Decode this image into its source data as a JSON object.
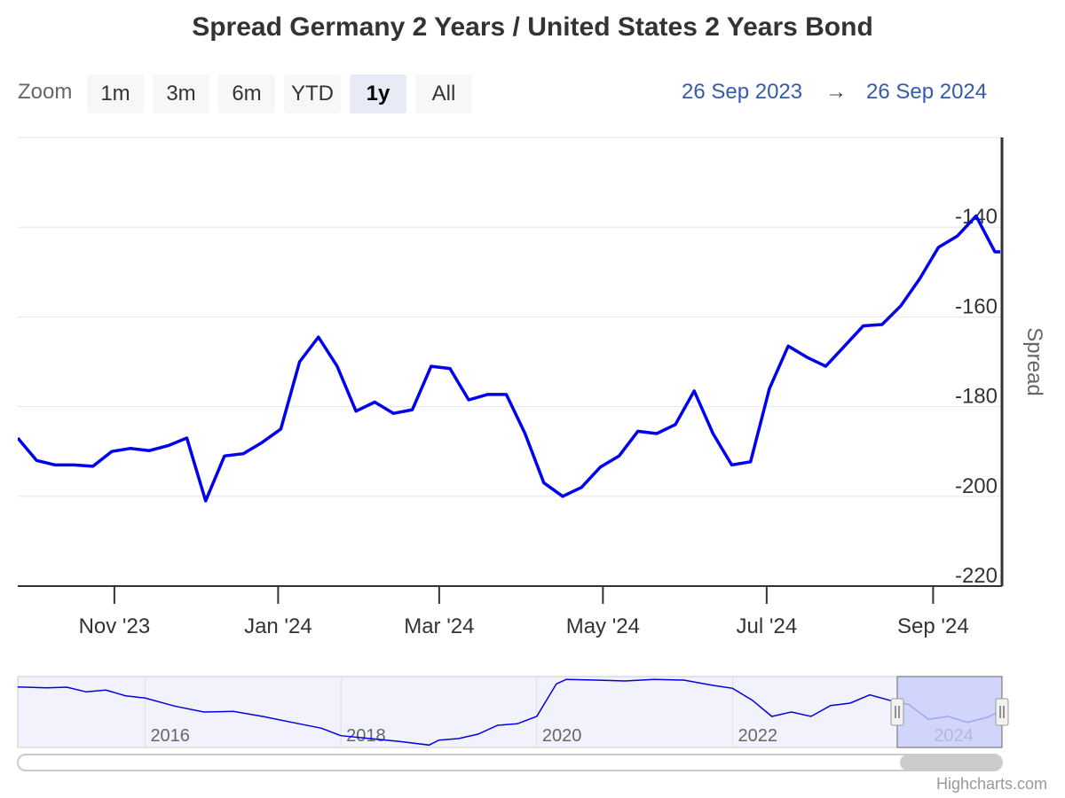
{
  "title": "Spread Germany 2 Years / United States 2 Years Bond",
  "zoom": {
    "label": "Zoom",
    "buttons": [
      "1m",
      "3m",
      "6m",
      "YTD",
      "1y",
      "All"
    ],
    "active": "1y"
  },
  "range": {
    "from": "26 Sep 2023",
    "arrow": "→",
    "to": "26 Sep 2024"
  },
  "credits": "Highcharts.com",
  "colors": {
    "series": "#0000ee",
    "navigator_series": "#0000dd",
    "range_text": "#335cad",
    "navigator_mask": "#c8cdfa"
  },
  "chart_data": {
    "type": "line",
    "title": "Spread Germany 2 Years / United States 2 Years Bond",
    "ylabel": "Spread",
    "ylim": [
      -220,
      -120
    ],
    "yticks": [
      -140,
      -160,
      -180,
      -200,
      -220
    ],
    "xrange": [
      "2023-09-26",
      "2024-09-26"
    ],
    "xticks": [
      {
        "date": "2023-11-01",
        "label": "Nov '23"
      },
      {
        "date": "2024-01-01",
        "label": "Jan '24"
      },
      {
        "date": "2024-03-01",
        "label": "Mar '24"
      },
      {
        "date": "2024-05-01",
        "label": "May '24"
      },
      {
        "date": "2024-07-01",
        "label": "Jul '24"
      },
      {
        "date": "2024-09-01",
        "label": "Sep '24"
      }
    ],
    "grid": true,
    "legend": "none",
    "series": [
      {
        "x": [
          "2023-09-26",
          "2023-10-03",
          "2023-10-10",
          "2023-10-17",
          "2023-10-24",
          "2023-10-31",
          "2023-11-07",
          "2023-11-14",
          "2023-11-21",
          "2023-11-28",
          "2023-12-05",
          "2023-12-12",
          "2023-12-19",
          "2023-12-26",
          "2024-01-02",
          "2024-01-09",
          "2024-01-16",
          "2024-01-23",
          "2024-01-30",
          "2024-02-06",
          "2024-02-13",
          "2024-02-20",
          "2024-02-27",
          "2024-03-05",
          "2024-03-12",
          "2024-03-19",
          "2024-03-26",
          "2024-04-02",
          "2024-04-09",
          "2024-04-16",
          "2024-04-23",
          "2024-04-30",
          "2024-05-07",
          "2024-05-14",
          "2024-05-21",
          "2024-05-28",
          "2024-06-04",
          "2024-06-11",
          "2024-06-18",
          "2024-06-25",
          "2024-07-02",
          "2024-07-09",
          "2024-07-16",
          "2024-07-23",
          "2024-07-30",
          "2024-08-06",
          "2024-08-13",
          "2024-08-20",
          "2024-08-27",
          "2024-09-03",
          "2024-09-10",
          "2024-09-17",
          "2024-09-24",
          "2024-09-26"
        ],
        "y": [
          -187,
          -192,
          -193,
          -193,
          -193.3,
          -190,
          -189.3,
          -189.8,
          -188.7,
          -187,
          -201,
          -191,
          -190.5,
          -188,
          -185,
          -170,
          -164.5,
          -171,
          -181,
          -179,
          -181.5,
          -180.7,
          -171,
          -171.5,
          -178.5,
          -177.3,
          -177.3,
          -186,
          -197,
          -200,
          -198,
          -193.5,
          -191,
          -185.5,
          -186,
          -184,
          -176.5,
          -186,
          -193,
          -192.3,
          -176,
          -166.5,
          -169,
          -171,
          -166.5,
          -162,
          -161.7,
          -157.5,
          -151.5,
          -144.5,
          -142,
          -137.5,
          -145.5,
          -145.5
        ]
      }
    ],
    "navigator": {
      "x_labels": [
        "2016",
        "2018",
        "2020",
        "2022",
        "2024"
      ],
      "series": [
        {
          "x": [
            2014.7,
            2015.0,
            2015.2,
            2015.4,
            2015.6,
            2015.8,
            2016.0,
            2016.3,
            2016.6,
            2016.9,
            2017.2,
            2017.5,
            2017.8,
            2018.0,
            2018.3,
            2018.6,
            2018.9,
            2019.0,
            2019.2,
            2019.4,
            2019.6,
            2019.8,
            2020.0,
            2020.2,
            2020.3,
            2020.6,
            2020.9,
            2021.2,
            2021.5,
            2021.8,
            2022.0,
            2022.2,
            2022.4,
            2022.6,
            2022.8,
            2023.0,
            2023.2,
            2023.4,
            2023.6,
            2023.8,
            2024.0,
            2024.2,
            2024.4,
            2024.6,
            2024.75
          ],
          "y": [
            -65,
            -68,
            -66,
            -82,
            -76,
            -95,
            -103,
            -130,
            -150,
            -148,
            -165,
            -185,
            -205,
            -230,
            -240,
            -250,
            -262,
            -245,
            -240,
            -225,
            -195,
            -190,
            -165,
            -55,
            -40,
            -42,
            -45,
            -40,
            -42,
            -60,
            -70,
            -110,
            -165,
            -150,
            -165,
            -128,
            -120,
            -92,
            -110,
            -125,
            -175,
            -165,
            -185,
            -168,
            -145
          ]
        }
      ]
    }
  }
}
